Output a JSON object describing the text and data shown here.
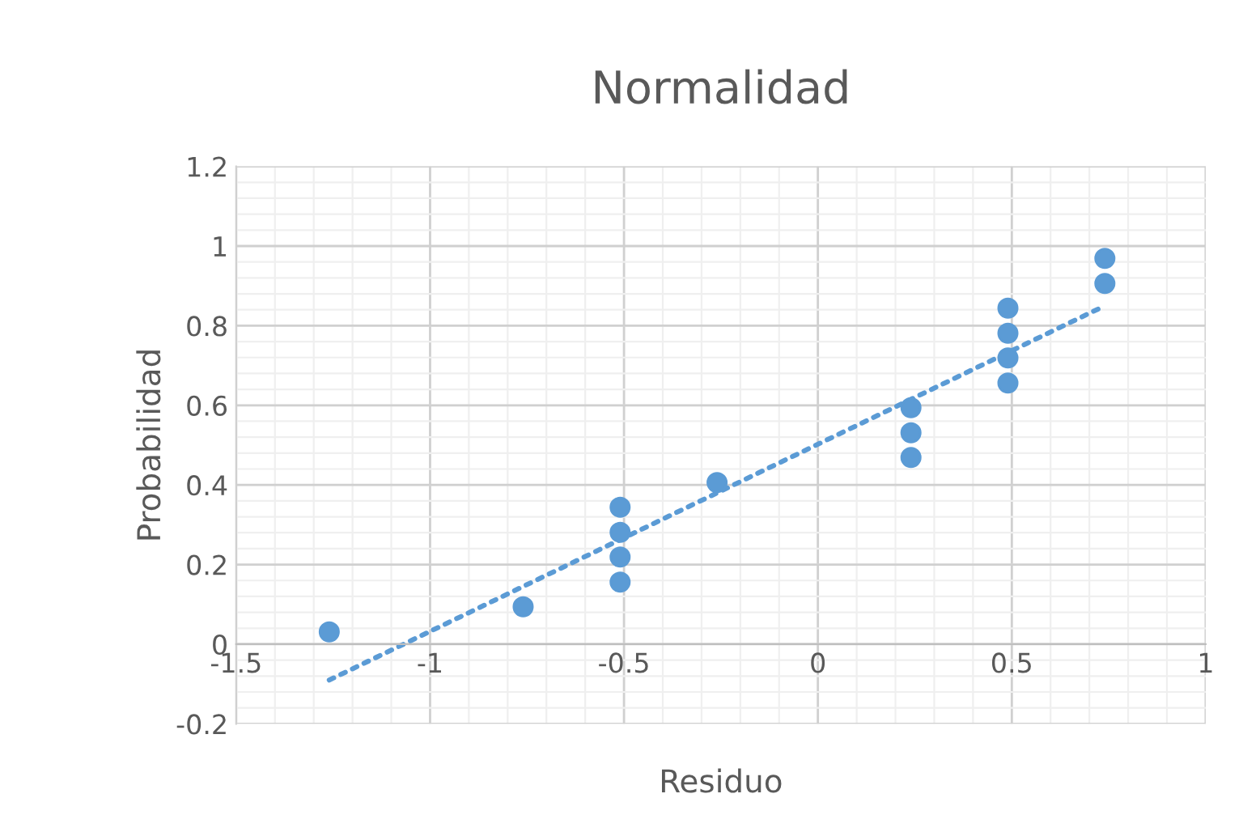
{
  "chart_data": {
    "type": "scatter",
    "title": "Normalidad",
    "xlabel": "Residuo",
    "ylabel": "Probabilidad",
    "xlim": [
      -1.5,
      1
    ],
    "xticks": [
      -1.5,
      -1,
      -0.5,
      0,
      0.5,
      1
    ],
    "ylim": [
      -0.2,
      1.2
    ],
    "yticks": [
      -0.2,
      0,
      0.2,
      0.4,
      0.6,
      0.8,
      1,
      1.2
    ],
    "grid": true,
    "series": [
      {
        "color": "#5b9bd5",
        "marker": "circle",
        "x": [
          -1.26,
          -0.76,
          -0.51,
          -0.51,
          -0.51,
          -0.51,
          -0.26,
          0.24,
          0.24,
          0.24,
          0.49,
          0.49,
          0.49,
          0.49,
          0.74,
          0.74
        ],
        "values": [
          0.031,
          0.094,
          0.156,
          0.219,
          0.281,
          0.344,
          0.406,
          0.469,
          0.531,
          0.594,
          0.656,
          0.719,
          0.781,
          0.844,
          0.906,
          0.969
        ]
      },
      {
        "type": "line",
        "color": "#5b9bd5",
        "marker": "none",
        "line_style": "dotted",
        "x": [
          -1.26,
          0.74
        ],
        "values": [
          -0.09,
          0.85
        ]
      }
    ]
  }
}
